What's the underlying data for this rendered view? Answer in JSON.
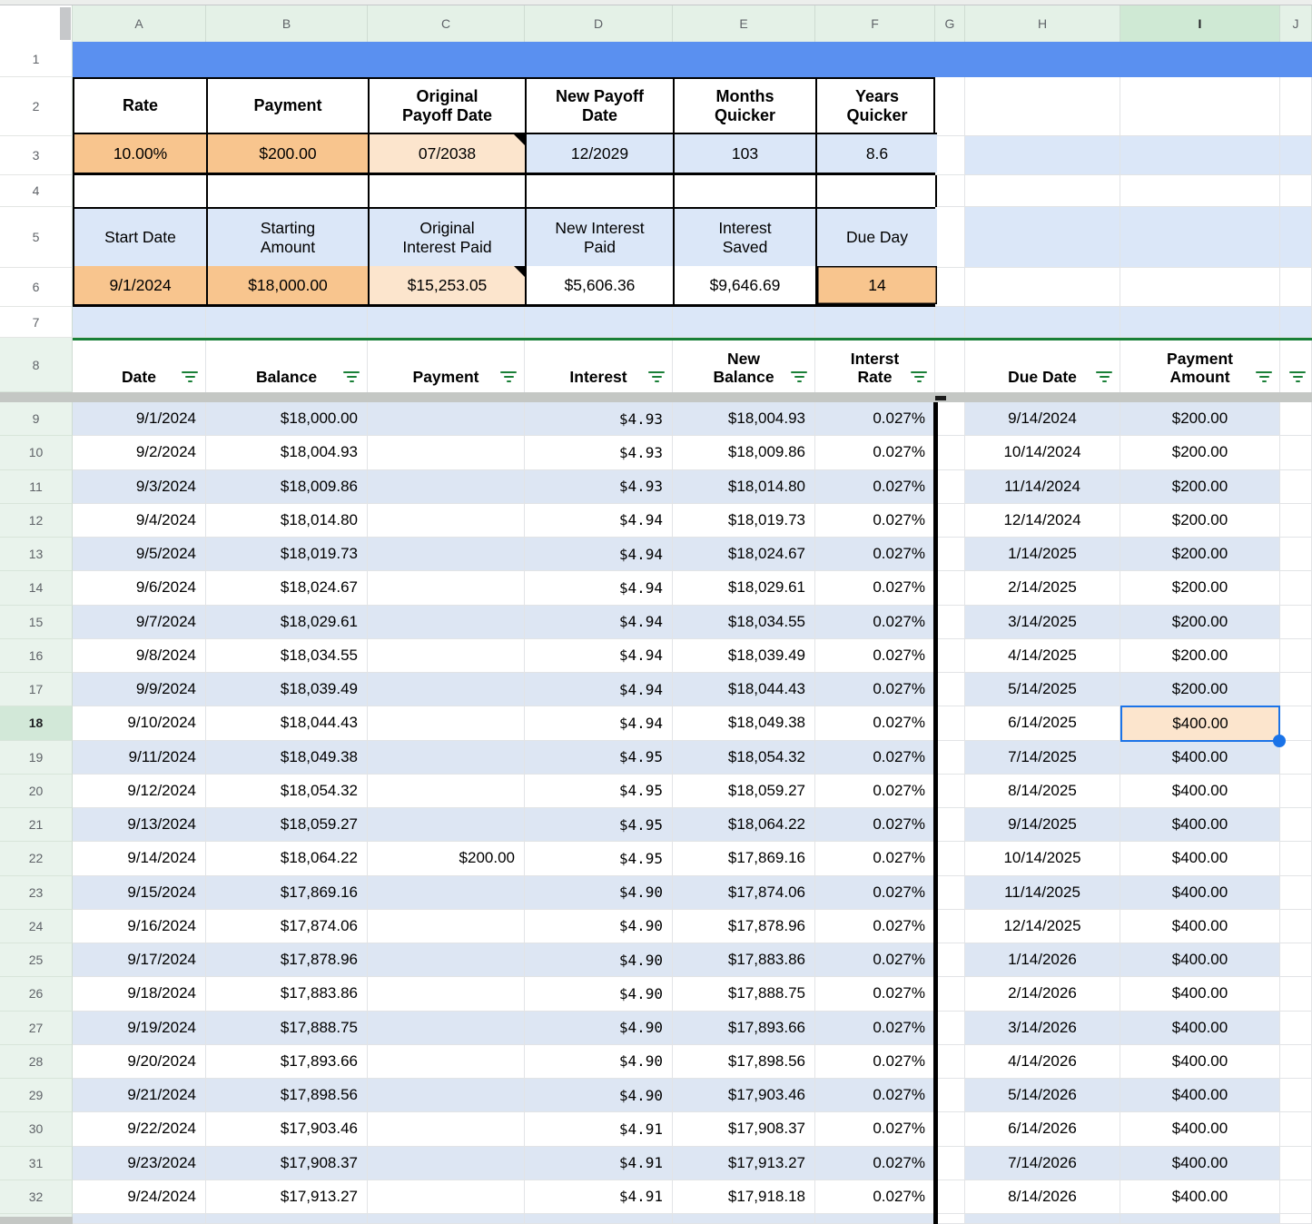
{
  "app": {
    "type": "spreadsheet",
    "feature": "filter-view"
  },
  "colors": {
    "row1_fill": "#5a90f0",
    "banding_blue": "#dde6f3",
    "summary_blue": "#dbe7f8",
    "orange": "#f8c58e",
    "light_orange": "#fce5cd",
    "header_green": "#e4f1e7",
    "selected_header_green": "#cfe9d4",
    "row_header_green": "#e9f3ec",
    "filter_green": "#188038",
    "selection_blue": "#1a73e8",
    "column_divider_black": "#000000",
    "frozen_divider_gray": "#c4c7c4"
  },
  "column_headers": {
    "letters": [
      "A",
      "B",
      "C",
      "D",
      "E",
      "F",
      "G",
      "H",
      "I",
      "J"
    ],
    "selected": "I"
  },
  "row_numbers": [
    "1",
    "2",
    "3",
    "4",
    "5",
    "6",
    "7",
    "8",
    "9",
    "10",
    "11",
    "12",
    "13",
    "14",
    "15",
    "16",
    "17",
    "18",
    "19",
    "20",
    "21",
    "22",
    "23",
    "24",
    "25",
    "26",
    "27",
    "28",
    "29",
    "30",
    "31",
    "32"
  ],
  "selected_row_number": "18",
  "summary_top": {
    "headers": [
      "Rate",
      "Payment",
      "Original\nPayoff Date",
      "New Payoff\nDate",
      "Months\nQuicker",
      "Years\nQuicker"
    ],
    "values": [
      "10.00%",
      "$200.00",
      "07/2038",
      "12/2029",
      "103",
      "8.6"
    ]
  },
  "summary_bottom": {
    "headers": [
      "Start Date",
      "Starting\nAmount",
      "Original\nInterest Paid",
      "New Interest\nPaid",
      "Interest\nSaved",
      "Due Day"
    ],
    "values": [
      "9/1/2024",
      "$18,000.00",
      "$15,253.05",
      "$5,606.36",
      "$9,646.69",
      "14"
    ]
  },
  "filter_table": {
    "left_headers": [
      "Date",
      "Balance",
      "Payment",
      "Interest",
      "New\nBalance",
      "Interst\nRate"
    ],
    "right_headers": [
      "Due Date",
      "Payment\nAmount"
    ],
    "rows": [
      {
        "row": "9",
        "date": "9/1/2024",
        "balance": "$18,000.00",
        "payment": "",
        "interest": "$4.93",
        "new_balance": "$18,004.93",
        "interest_rate": "0.027%",
        "due_date": "9/14/2024",
        "payment_amount": "$200.00"
      },
      {
        "row": "10",
        "date": "9/2/2024",
        "balance": "$18,004.93",
        "payment": "",
        "interest": "$4.93",
        "new_balance": "$18,009.86",
        "interest_rate": "0.027%",
        "due_date": "10/14/2024",
        "payment_amount": "$200.00"
      },
      {
        "row": "11",
        "date": "9/3/2024",
        "balance": "$18,009.86",
        "payment": "",
        "interest": "$4.93",
        "new_balance": "$18,014.80",
        "interest_rate": "0.027%",
        "due_date": "11/14/2024",
        "payment_amount": "$200.00"
      },
      {
        "row": "12",
        "date": "9/4/2024",
        "balance": "$18,014.80",
        "payment": "",
        "interest": "$4.94",
        "new_balance": "$18,019.73",
        "interest_rate": "0.027%",
        "due_date": "12/14/2024",
        "payment_amount": "$200.00"
      },
      {
        "row": "13",
        "date": "9/5/2024",
        "balance": "$18,019.73",
        "payment": "",
        "interest": "$4.94",
        "new_balance": "$18,024.67",
        "interest_rate": "0.027%",
        "due_date": "1/14/2025",
        "payment_amount": "$200.00"
      },
      {
        "row": "14",
        "date": "9/6/2024",
        "balance": "$18,024.67",
        "payment": "",
        "interest": "$4.94",
        "new_balance": "$18,029.61",
        "interest_rate": "0.027%",
        "due_date": "2/14/2025",
        "payment_amount": "$200.00"
      },
      {
        "row": "15",
        "date": "9/7/2024",
        "balance": "$18,029.61",
        "payment": "",
        "interest": "$4.94",
        "new_balance": "$18,034.55",
        "interest_rate": "0.027%",
        "due_date": "3/14/2025",
        "payment_amount": "$200.00"
      },
      {
        "row": "16",
        "date": "9/8/2024",
        "balance": "$18,034.55",
        "payment": "",
        "interest": "$4.94",
        "new_balance": "$18,039.49",
        "interest_rate": "0.027%",
        "due_date": "4/14/2025",
        "payment_amount": "$200.00"
      },
      {
        "row": "17",
        "date": "9/9/2024",
        "balance": "$18,039.49",
        "payment": "",
        "interest": "$4.94",
        "new_balance": "$18,044.43",
        "interest_rate": "0.027%",
        "due_date": "5/14/2025",
        "payment_amount": "$200.00"
      },
      {
        "row": "18",
        "date": "9/10/2024",
        "balance": "$18,044.43",
        "payment": "",
        "interest": "$4.94",
        "new_balance": "$18,049.38",
        "interest_rate": "0.027%",
        "due_date": "6/14/2025",
        "payment_amount": "$400.00"
      },
      {
        "row": "19",
        "date": "9/11/2024",
        "balance": "$18,049.38",
        "payment": "",
        "interest": "$4.95",
        "new_balance": "$18,054.32",
        "interest_rate": "0.027%",
        "due_date": "7/14/2025",
        "payment_amount": "$400.00"
      },
      {
        "row": "20",
        "date": "9/12/2024",
        "balance": "$18,054.32",
        "payment": "",
        "interest": "$4.95",
        "new_balance": "$18,059.27",
        "interest_rate": "0.027%",
        "due_date": "8/14/2025",
        "payment_amount": "$400.00"
      },
      {
        "row": "21",
        "date": "9/13/2024",
        "balance": "$18,059.27",
        "payment": "",
        "interest": "$4.95",
        "new_balance": "$18,064.22",
        "interest_rate": "0.027%",
        "due_date": "9/14/2025",
        "payment_amount": "$400.00"
      },
      {
        "row": "22",
        "date": "9/14/2024",
        "balance": "$18,064.22",
        "payment": "$200.00",
        "interest": "$4.95",
        "new_balance": "$17,869.16",
        "interest_rate": "0.027%",
        "due_date": "10/14/2025",
        "payment_amount": "$400.00"
      },
      {
        "row": "23",
        "date": "9/15/2024",
        "balance": "$17,869.16",
        "payment": "",
        "interest": "$4.90",
        "new_balance": "$17,874.06",
        "interest_rate": "0.027%",
        "due_date": "11/14/2025",
        "payment_amount": "$400.00"
      },
      {
        "row": "24",
        "date": "9/16/2024",
        "balance": "$17,874.06",
        "payment": "",
        "interest": "$4.90",
        "new_balance": "$17,878.96",
        "interest_rate": "0.027%",
        "due_date": "12/14/2025",
        "payment_amount": "$400.00"
      },
      {
        "row": "25",
        "date": "9/17/2024",
        "balance": "$17,878.96",
        "payment": "",
        "interest": "$4.90",
        "new_balance": "$17,883.86",
        "interest_rate": "0.027%",
        "due_date": "1/14/2026",
        "payment_amount": "$400.00"
      },
      {
        "row": "26",
        "date": "9/18/2024",
        "balance": "$17,883.86",
        "payment": "",
        "interest": "$4.90",
        "new_balance": "$17,888.75",
        "interest_rate": "0.027%",
        "due_date": "2/14/2026",
        "payment_amount": "$400.00"
      },
      {
        "row": "27",
        "date": "9/19/2024",
        "balance": "$17,888.75",
        "payment": "",
        "interest": "$4.90",
        "new_balance": "$17,893.66",
        "interest_rate": "0.027%",
        "due_date": "3/14/2026",
        "payment_amount": "$400.00"
      },
      {
        "row": "28",
        "date": "9/20/2024",
        "balance": "$17,893.66",
        "payment": "",
        "interest": "$4.90",
        "new_balance": "$17,898.56",
        "interest_rate": "0.027%",
        "due_date": "4/14/2026",
        "payment_amount": "$400.00"
      },
      {
        "row": "29",
        "date": "9/21/2024",
        "balance": "$17,898.56",
        "payment": "",
        "interest": "$4.90",
        "new_balance": "$17,903.46",
        "interest_rate": "0.027%",
        "due_date": "5/14/2026",
        "payment_amount": "$400.00"
      },
      {
        "row": "30",
        "date": "9/22/2024",
        "balance": "$17,903.46",
        "payment": "",
        "interest": "$4.91",
        "new_balance": "$17,908.37",
        "interest_rate": "0.027%",
        "due_date": "6/14/2026",
        "payment_amount": "$400.00"
      },
      {
        "row": "31",
        "date": "9/23/2024",
        "balance": "$17,908.37",
        "payment": "",
        "interest": "$4.91",
        "new_balance": "$17,913.27",
        "interest_rate": "0.027%",
        "due_date": "7/14/2026",
        "payment_amount": "$400.00"
      },
      {
        "row": "32",
        "date": "9/24/2024",
        "balance": "$17,913.27",
        "payment": "",
        "interest": "$4.91",
        "new_balance": "$17,918.18",
        "interest_rate": "0.027%",
        "due_date": "8/14/2026",
        "payment_amount": "$400.00"
      }
    ]
  },
  "selection": {
    "cell": "I18",
    "value": "$400.00"
  }
}
